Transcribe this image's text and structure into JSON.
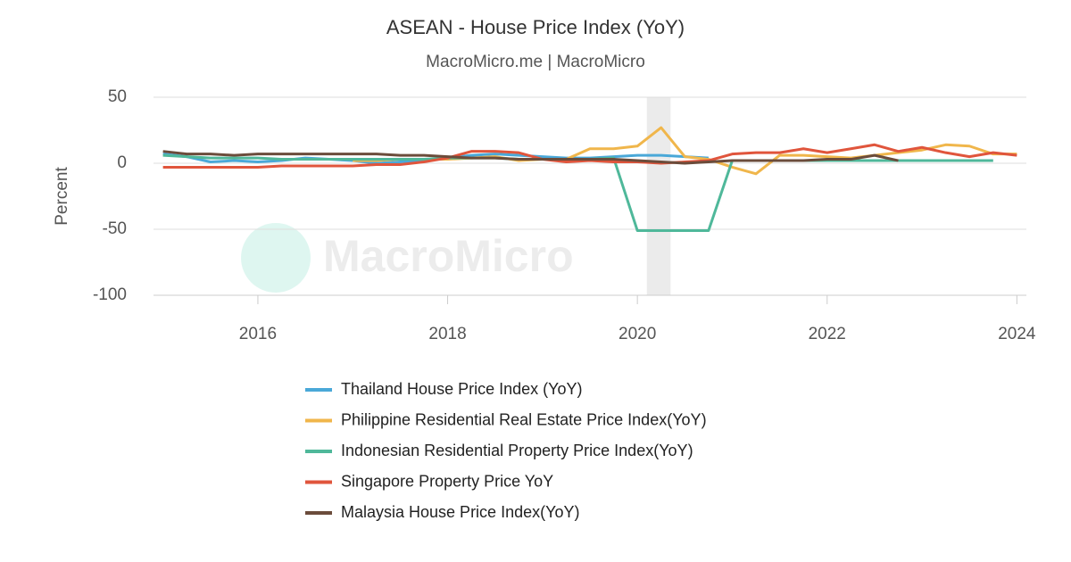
{
  "chart_data": {
    "type": "line",
    "title": "ASEAN - House Price Index (YoY)",
    "subtitle": "MacroMicro.me | MacroMicro",
    "watermark": "MacroMicro",
    "y_label": "Percent",
    "x": [
      2015,
      2015.25,
      2015.5,
      2015.75,
      2016,
      2016.25,
      2016.5,
      2016.75,
      2017,
      2017.25,
      2017.5,
      2017.75,
      2018,
      2018.25,
      2018.5,
      2018.75,
      2019,
      2019.25,
      2019.5,
      2019.75,
      2020,
      2020.25,
      2020.5,
      2020.75,
      2021,
      2021.25,
      2021.5,
      2021.75,
      2022,
      2022.25,
      2022.5,
      2022.75,
      2023,
      2023.25,
      2023.5,
      2023.75,
      2024
    ],
    "series": [
      {
        "name": "Thailand House Price Index (YoY)",
        "color": "#4aa8d8",
        "values": [
          7,
          5,
          1,
          2,
          1,
          2,
          4,
          3,
          2,
          0,
          1,
          2,
          4,
          6,
          7,
          6,
          5,
          4,
          4,
          5,
          6,
          6,
          5,
          4,
          null,
          null,
          null,
          null,
          null,
          null,
          null,
          null,
          null,
          null,
          null,
          null,
          null
        ]
      },
      {
        "name": "Philippine Residential Real Estate Price Index(YoY)",
        "color": "#f0b64b",
        "values": [
          null,
          null,
          null,
          null,
          null,
          null,
          null,
          null,
          2,
          2,
          3,
          3,
          3,
          4,
          5,
          2,
          3,
          3,
          11,
          11,
          13,
          27,
          5,
          3,
          -3,
          -8,
          6,
          6,
          5,
          4,
          6,
          8,
          10,
          14,
          13,
          7,
          7
        ]
      },
      {
        "name": "Indonesian Residential Property Price Index(YoY)",
        "color": "#4fb89a",
        "values": [
          6,
          5,
          4,
          4,
          4,
          3,
          3,
          3,
          3,
          3,
          3,
          3,
          4,
          4,
          4,
          3,
          3,
          3,
          3,
          4,
          -51,
          -51,
          -51,
          -51,
          2,
          2,
          2,
          2,
          2,
          2,
          2,
          2,
          2,
          2,
          2,
          2,
          null
        ]
      },
      {
        "name": "Singapore Property Price YoY",
        "color": "#e0553c",
        "values": [
          -3,
          -3,
          -3,
          -3,
          -3,
          -2,
          -2,
          -2,
          -2,
          -1,
          -1,
          1,
          4,
          9,
          9,
          8,
          3,
          1,
          2,
          1,
          1,
          0,
          1,
          2,
          7,
          8,
          8,
          11,
          8,
          11,
          14,
          9,
          12,
          8,
          5,
          8,
          6
        ]
      },
      {
        "name": "Malaysia House Price Index(YoY)",
        "color": "#6b4c3b",
        "values": [
          9,
          7,
          7,
          6,
          7,
          7,
          7,
          7,
          7,
          7,
          6,
          6,
          5,
          4,
          4,
          3,
          3,
          3,
          3,
          3,
          2,
          1,
          0,
          1,
          2,
          2,
          2,
          2,
          3,
          3,
          6,
          2,
          null,
          null,
          null,
          null,
          null
        ]
      }
    ],
    "shaded_periods": [
      [
        2020.1,
        2020.35
      ]
    ],
    "xlim": [
      2014.9,
      2024.1
    ],
    "xticks": [
      2016,
      2018,
      2020,
      2022,
      2024
    ],
    "ylim": [
      -100,
      50
    ],
    "yticks": [
      -100,
      -50,
      0,
      50
    ],
    "grid": true,
    "legend": "bottom"
  }
}
